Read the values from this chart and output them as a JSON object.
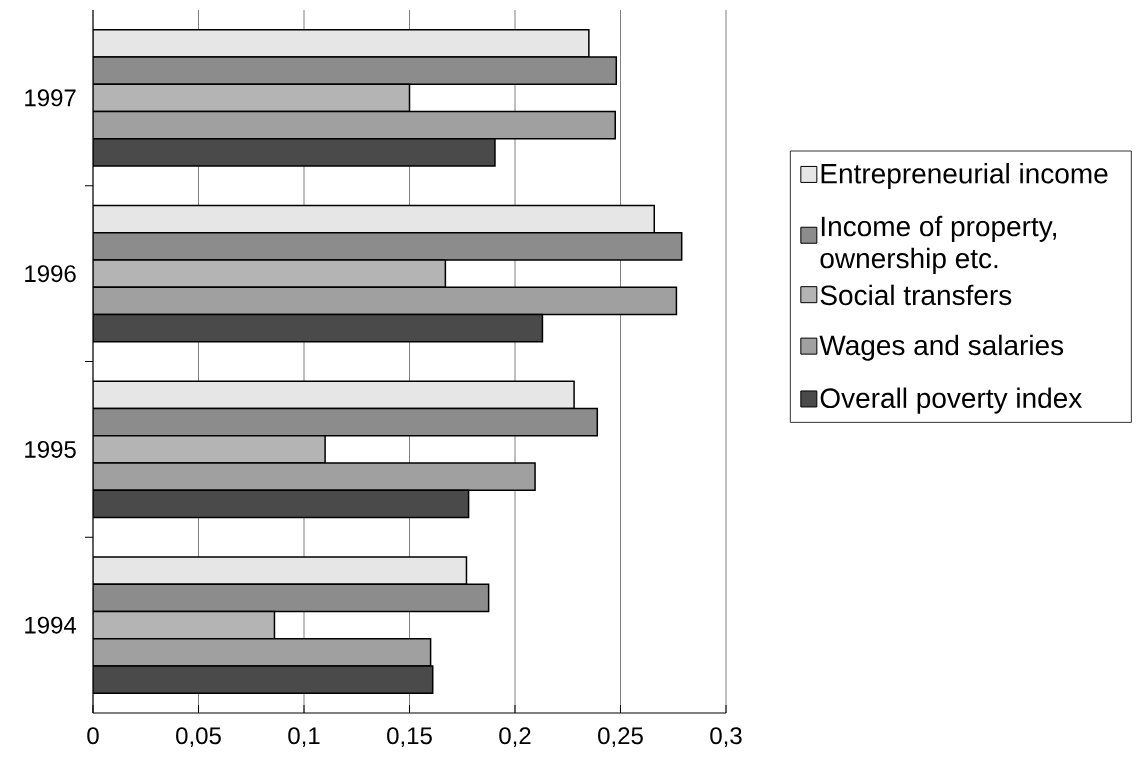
{
  "chart_data": {
    "type": "bar",
    "orientation": "horizontal",
    "categories": [
      "1997",
      "1996",
      "1995",
      "1994"
    ],
    "series": [
      {
        "name": "Entrepreneurial income",
        "color": "#e6e6e6",
        "values": [
          0.235,
          0.266,
          0.228,
          0.177
        ]
      },
      {
        "name": "Income of property, ownership etc.",
        "color": "#8c8c8c",
        "values": [
          0.248,
          0.279,
          0.239,
          0.1875
        ]
      },
      {
        "name": "Social transfers",
        "color": "#b4b4b4",
        "values": [
          0.15,
          0.167,
          0.11,
          0.086
        ]
      },
      {
        "name": "Wages and salaries",
        "color": "#a0a0a0",
        "values": [
          0.2475,
          0.2765,
          0.2095,
          0.16
        ]
      },
      {
        "name": "Overall poverty index",
        "color": "#4a4a4a",
        "values": [
          0.1905,
          0.213,
          0.178,
          0.161
        ]
      }
    ],
    "xlim": [
      0,
      0.3
    ],
    "xticks": [
      0,
      {
        "value": 0.05,
        "label": "0,05"
      },
      {
        "value": 0.1,
        "label": "0,1"
      },
      {
        "value": 0.15,
        "label": "0,15"
      },
      {
        "value": 0.2,
        "label": "0,2"
      },
      {
        "value": 0.25,
        "label": "0,25"
      },
      {
        "value": 0.3,
        "label": "0,3"
      }
    ],
    "grid": "x",
    "legend": "right"
  }
}
